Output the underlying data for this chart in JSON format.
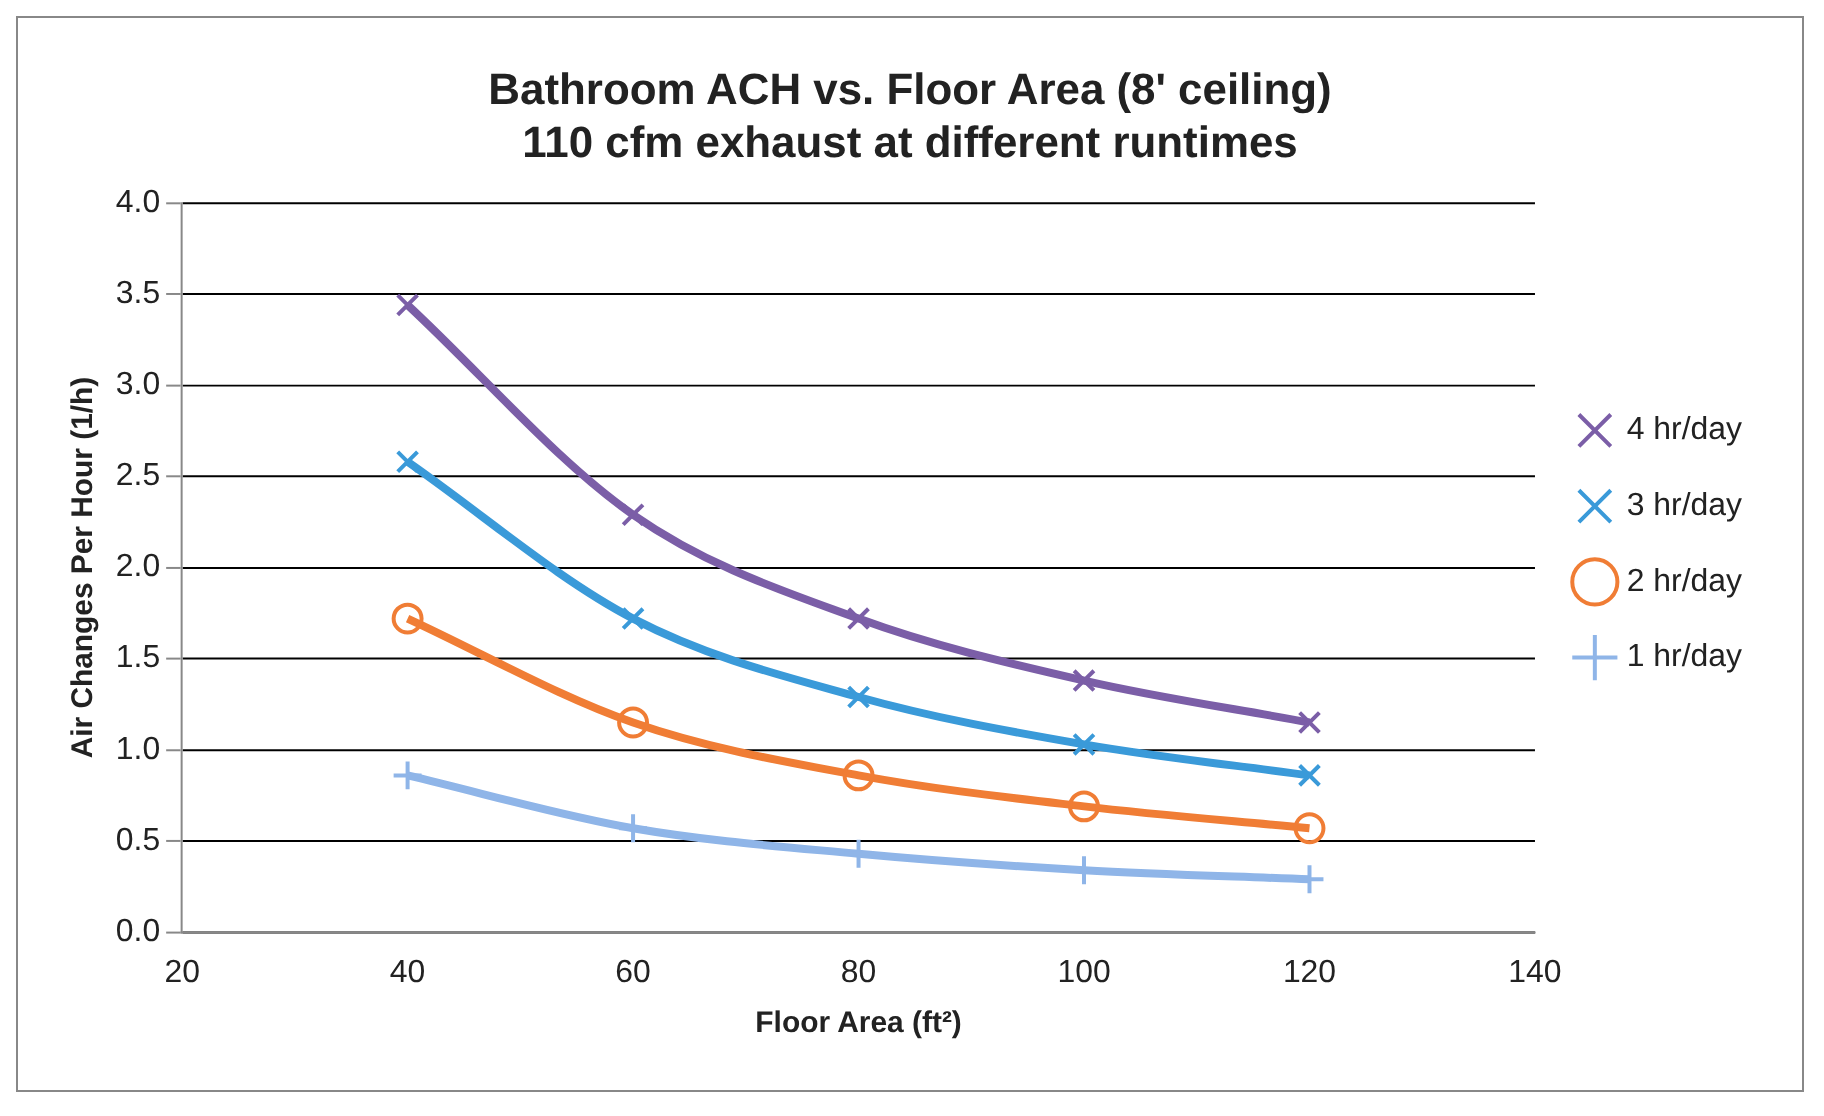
{
  "chart_data": {
    "type": "line",
    "title": "Bathroom ACH vs. Floor Area (8' ceiling)\n110 cfm exhaust at different runtimes",
    "xlabel": "Floor Area (ft²)",
    "ylabel": "Air Changes Per Hour (1/h)",
    "x": [
      40,
      60,
      80,
      100,
      120
    ],
    "series": [
      {
        "name": "4 hr/day",
        "color": "#7b5ea7",
        "marker": "cross",
        "values": [
          3.44,
          2.29,
          1.72,
          1.38,
          1.15
        ]
      },
      {
        "name": "3 hr/day",
        "color": "#3a9ad9",
        "marker": "cross",
        "values": [
          2.58,
          1.72,
          1.29,
          1.03,
          0.86
        ]
      },
      {
        "name": "2 hr/day",
        "color": "#f07d35",
        "marker": "circle",
        "values": [
          1.72,
          1.15,
          0.86,
          0.69,
          0.57
        ]
      },
      {
        "name": "1 hr/day",
        "color": "#8fb5e8",
        "marker": "plus",
        "values": [
          0.86,
          0.57,
          0.43,
          0.34,
          0.29
        ]
      }
    ],
    "xlim": [
      20,
      140
    ],
    "xticks": [
      20,
      40,
      60,
      80,
      100,
      120,
      140
    ],
    "ylim": [
      0,
      4
    ],
    "yticks": [
      {
        "value": 0,
        "label": "0.0"
      },
      {
        "value": 0.5,
        "label": "0.5"
      },
      {
        "value": 1,
        "label": "1.0"
      },
      {
        "value": 1.5,
        "label": "1.5"
      },
      {
        "value": 2,
        "label": "2.0"
      },
      {
        "value": 2.5,
        "label": "2.5"
      },
      {
        "value": 3,
        "label": "3.0"
      },
      {
        "value": 3.5,
        "label": "3.5"
      },
      {
        "value": 4,
        "label": "4.0"
      }
    ],
    "grid": "y",
    "legend": "right"
  }
}
